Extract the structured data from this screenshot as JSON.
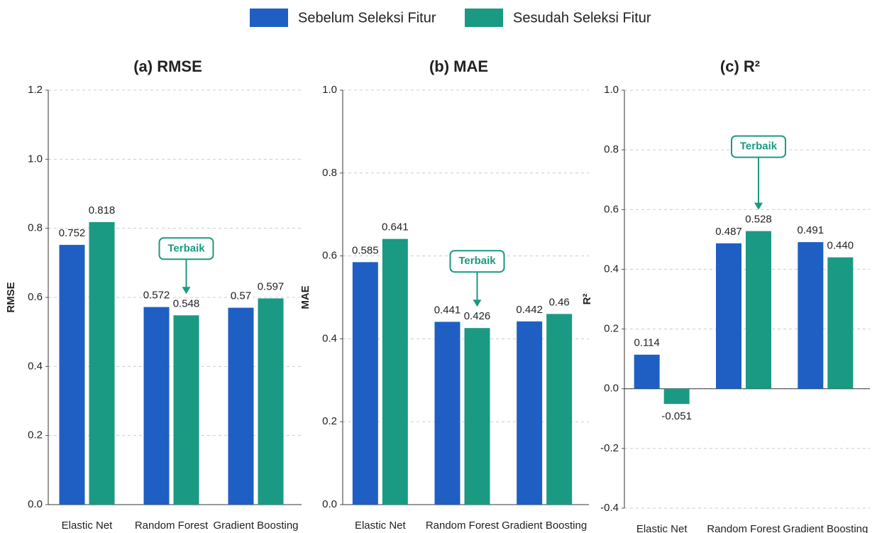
{
  "legend": {
    "series": [
      {
        "name": "Sebelum Seleksi Fitur",
        "color": "#1f5fc4"
      },
      {
        "name": "Sesudah Seleksi Fitur",
        "color": "#1a9a82"
      }
    ]
  },
  "chart_data": [
    {
      "type": "bar",
      "title": "(a) RMSE",
      "y_label": "RMSE",
      "categories": [
        "Elastic Net",
        "Random Forest",
        "Gradient Boosting"
      ],
      "series": [
        {
          "values": [
            0.752,
            0.572,
            0.57
          ]
        },
        {
          "values": [
            0.818,
            0.548,
            0.597
          ]
        }
      ],
      "ylim": [
        0,
        1.2
      ],
      "yticks": [
        {
          "value": 0,
          "label": "0.0"
        },
        0.2,
        0.4,
        0.6,
        0.8,
        {
          "value": 1,
          "label": "1.0"
        },
        1.2
      ],
      "grid": true,
      "annotation": "Terbaik"
    },
    {
      "type": "bar",
      "title": "(b) MAE",
      "y_label": "MAE",
      "categories": [
        "Elastic Net",
        "Random Forest",
        "Gradient Boosting"
      ],
      "series": [
        {
          "values": [
            0.585,
            0.441,
            0.442
          ]
        },
        {
          "values": [
            0.641,
            0.426,
            0.46
          ]
        }
      ],
      "ylim": [
        0,
        1.0
      ],
      "yticks": [
        {
          "value": 0,
          "label": "0.0"
        },
        0.2,
        0.4,
        0.6,
        0.8,
        {
          "value": 1,
          "label": "1.0"
        }
      ],
      "grid": true,
      "annotation": "Terbaik"
    },
    {
      "type": "bar",
      "title": "(c) R²",
      "y_label": "R²",
      "categories": [
        "Elastic Net",
        "Random Forest",
        "Gradient Boosting"
      ],
      "series": [
        {
          "values": [
            0.114,
            0.487,
            0.491
          ]
        },
        {
          "values": [
            -0.051,
            0.528,
            0.44
          ],
          "value_labels": [
            "-0.051",
            "0.528",
            "0.440"
          ]
        }
      ],
      "ylim": [
        -0.4,
        1.0
      ],
      "yticks": [
        -0.4,
        -0.2,
        {
          "value": 0,
          "label": "0.0"
        },
        0.2,
        0.4,
        0.6,
        0.8,
        {
          "value": 1,
          "label": "1.0"
        }
      ],
      "grid": true,
      "annotation": "Terbaik"
    }
  ]
}
